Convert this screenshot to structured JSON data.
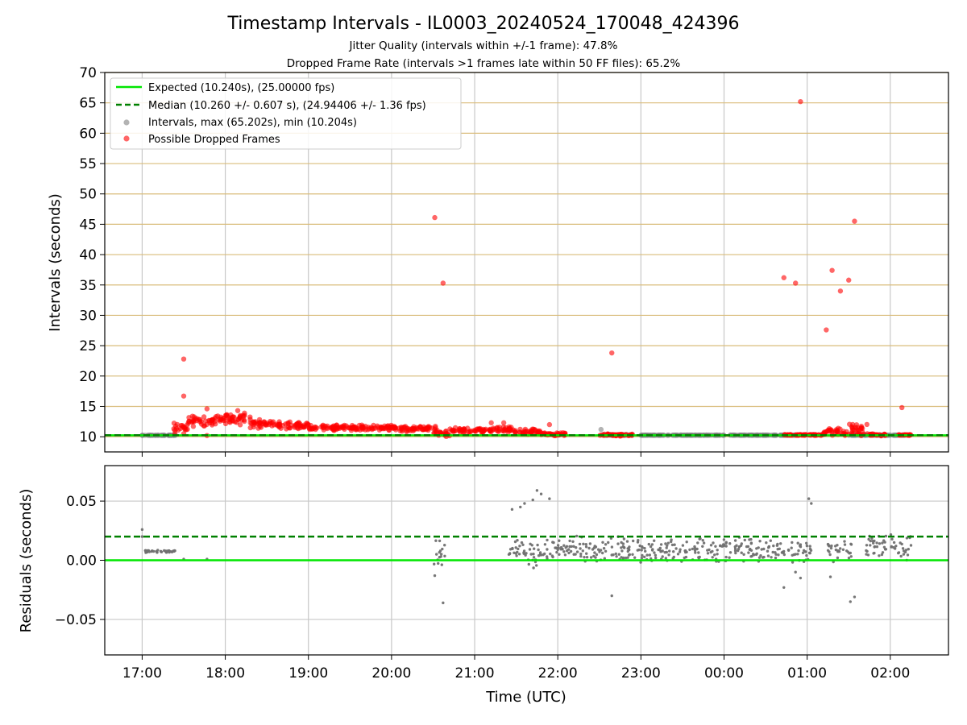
{
  "chart_data": [
    {
      "type": "scatter",
      "title": "Timestamp Intervals - IL0003_20240524_170048_424396",
      "subtitles": [
        "Jitter Quality (intervals within +/-1 frame): 47.8%",
        "Dropped Frame Rate (intervals >1 frames late within 50 FF files): 65.2%"
      ],
      "xlabel": "",
      "ylabel": "Intervals (seconds)",
      "x_range_hours": [
        16.55,
        26.7
      ],
      "ylim": [
        7.5,
        70
      ],
      "y_ticks": [
        10,
        15,
        20,
        25,
        30,
        35,
        40,
        45,
        50,
        55,
        60,
        65,
        70
      ],
      "x_ticks": [
        17,
        18,
        19,
        20,
        21,
        22,
        23,
        24,
        25,
        26
      ],
      "x_tick_labels": [
        "17:00",
        "18:00",
        "19:00",
        "20:00",
        "21:00",
        "22:00",
        "23:00",
        "00:00",
        "01:00",
        "02:00"
      ],
      "grid": {
        "vertical": true,
        "horizontal_color": "#d9bc7a"
      },
      "legend": {
        "placement": "top-left",
        "entries": [
          "Expected (10.240s), (25.00000 fps)",
          "Median (10.260 +/- 0.607 s), (24.94406 +/- 1.36 fps)",
          "Intervals, max (65.202s), min (10.204s)",
          "Possible Dropped Frames"
        ]
      },
      "series": [
        {
          "name": "Expected (10.240s), (25.00000 fps)",
          "kind": "hline",
          "y": 10.24,
          "color": "#00e600",
          "style": "solid"
        },
        {
          "name": "Median (10.260 +/- 0.607 s), (24.94406 +/- 1.36 fps)",
          "kind": "hline",
          "y": 10.26,
          "color": "#008000",
          "style": "dashed"
        },
        {
          "name": "Intervals, max (65.202s), min (10.204s)",
          "kind": "scatter",
          "color": "#808080",
          "bands": [
            [
              17.0,
              17.4,
              10.24,
              0.02
            ],
            [
              22.5,
              22.9,
              10.3,
              0.1
            ],
            [
              23.0,
              24.9,
              10.26,
              0.02
            ],
            [
              25.5,
              26.2,
              10.26,
              0.02
            ]
          ],
          "points": [
            [
              22.52,
              11.2
            ]
          ]
        },
        {
          "name": "Possible Dropped Frames",
          "kind": "scatter",
          "color": "#ff0000",
          "bands": [
            [
              17.38,
              17.55,
              11.6,
              1.2
            ],
            [
              17.55,
              17.9,
              12.6,
              1.0
            ],
            [
              17.9,
              18.3,
              12.9,
              1.1
            ],
            [
              18.3,
              18.6,
              12.2,
              0.9
            ],
            [
              18.6,
              19.0,
              11.9,
              0.7
            ],
            [
              19.0,
              19.6,
              11.5,
              0.5
            ],
            [
              19.6,
              20.1,
              11.5,
              0.5
            ],
            [
              20.1,
              20.55,
              11.3,
              0.5
            ],
            [
              20.5,
              20.7,
              10.6,
              0.6
            ],
            [
              20.7,
              21.2,
              11.0,
              0.5
            ],
            [
              21.2,
              21.45,
              11.2,
              0.6
            ],
            [
              21.45,
              21.8,
              10.8,
              0.5
            ],
            [
              21.8,
              22.1,
              10.4,
              0.3
            ],
            [
              22.5,
              22.9,
              10.3,
              0.2
            ],
            [
              24.72,
              25.2,
              10.3,
              0.1
            ],
            [
              25.2,
              25.5,
              10.8,
              0.7
            ],
            [
              25.5,
              25.75,
              11.2,
              1.3
            ],
            [
              25.75,
              25.95,
              10.3,
              0.2
            ],
            [
              26.1,
              26.25,
              10.3,
              0.1
            ]
          ],
          "points": [
            [
              17.5,
              22.8
            ],
            [
              17.5,
              16.7
            ],
            [
              17.5,
              10.5
            ],
            [
              17.78,
              10.2
            ],
            [
              17.78,
              14.6
            ],
            [
              18.15,
              14.3
            ],
            [
              20.52,
              46.1
            ],
            [
              20.62,
              35.3
            ],
            [
              21.2,
              12.3
            ],
            [
              21.35,
              12.3
            ],
            [
              21.9,
              12.0
            ],
            [
              22.65,
              23.8
            ],
            [
              24.72,
              36.2
            ],
            [
              24.86,
              35.3
            ],
            [
              24.92,
              65.2
            ],
            [
              25.23,
              27.6
            ],
            [
              25.3,
              37.4
            ],
            [
              25.4,
              34.0
            ],
            [
              25.5,
              35.8
            ],
            [
              25.57,
              45.5
            ],
            [
              26.14,
              14.8
            ]
          ]
        }
      ]
    },
    {
      "type": "scatter",
      "xlabel": "Time (UTC)",
      "ylabel": "Residuals (seconds)",
      "ylim": [
        -0.08,
        0.08
      ],
      "y_ticks": [
        0.05,
        0.0,
        -0.05
      ],
      "y_tick_labels": [
        "0.05",
        "0.00",
        "−0.05"
      ],
      "x_ticks": [
        17,
        18,
        19,
        20,
        21,
        22,
        23,
        24,
        25,
        26
      ],
      "x_tick_labels": [
        "17:00",
        "18:00",
        "19:00",
        "20:00",
        "21:00",
        "22:00",
        "23:00",
        "00:00",
        "01:00",
        "02:00"
      ],
      "grid": {
        "vertical": true,
        "horizontal": true
      },
      "series": [
        {
          "kind": "hline",
          "y": 0.0,
          "color": "#00e600",
          "style": "solid"
        },
        {
          "kind": "hline",
          "y": 0.02,
          "color": "#008000",
          "style": "dashed"
        },
        {
          "kind": "scatter",
          "color": "#707070",
          "bands": [
            [
              17.0,
              17.4,
              0.0075,
              0.0012
            ],
            [
              20.5,
              20.65,
              0.006,
              0.012
            ],
            [
              21.4,
              21.85,
              0.006,
              0.014
            ],
            [
              21.85,
              22.3,
              0.01,
              0.012
            ],
            [
              22.3,
              23.0,
              0.009,
              0.012
            ],
            [
              23.0,
              24.0,
              0.0085,
              0.012
            ],
            [
              24.0,
              24.75,
              0.009,
              0.012
            ],
            [
              24.75,
              25.05,
              0.008,
              0.012
            ],
            [
              25.25,
              25.55,
              0.008,
              0.012
            ],
            [
              25.7,
              26.25,
              0.011,
              0.012
            ]
          ],
          "points": [
            [
              17.0,
              0.026
            ],
            [
              17.0,
              0.02
            ],
            [
              17.5,
              0.001
            ],
            [
              17.78,
              0.001
            ],
            [
              20.52,
              -0.013
            ],
            [
              20.62,
              -0.036
            ],
            [
              21.45,
              0.043
            ],
            [
              21.55,
              0.045
            ],
            [
              21.6,
              0.048
            ],
            [
              21.7,
              0.051
            ],
            [
              21.75,
              0.059
            ],
            [
              21.8,
              0.056
            ],
            [
              21.9,
              0.052
            ],
            [
              22.65,
              -0.03
            ],
            [
              24.72,
              -0.023
            ],
            [
              24.86,
              -0.01
            ],
            [
              24.92,
              -0.015
            ],
            [
              25.02,
              0.052
            ],
            [
              25.05,
              0.048
            ],
            [
              25.28,
              -0.014
            ],
            [
              25.52,
              -0.035
            ],
            [
              25.57,
              -0.031
            ]
          ]
        }
      ]
    }
  ]
}
